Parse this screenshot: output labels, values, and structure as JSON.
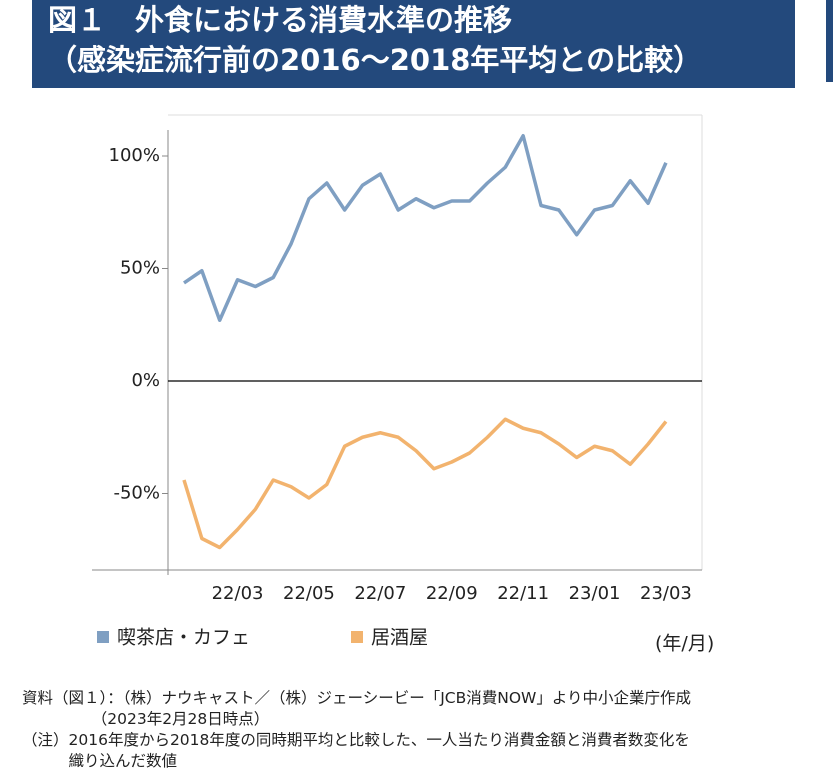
{
  "chart_data": {
    "type": "line",
    "title": [
      "図１　外食における消費水準の推移",
      "（感染症流行前の2016～2018年平均との比較）"
    ],
    "x_label": "(年/月)",
    "categories": [
      null,
      null,
      null,
      "22/03",
      null,
      null,
      null,
      "22/05",
      null,
      null,
      null,
      "22/07",
      null,
      null,
      null,
      "22/09",
      null,
      null,
      null,
      "22/11",
      null,
      null,
      null,
      "23/01",
      null,
      null,
      null,
      "23/03"
    ],
    "series": [
      {
        "name": "喫茶店・カフェ",
        "color": "#7f9fc2",
        "values": [
          43.6,
          49,
          27,
          45,
          42,
          46,
          61,
          81,
          88,
          76,
          87,
          92,
          76,
          81,
          77,
          80,
          80,
          88,
          95,
          109,
          78,
          76,
          65,
          76,
          78,
          89,
          79,
          97
        ]
      },
      {
        "name": "居酒屋",
        "color": "#f2b36e",
        "values": [
          -44,
          -70,
          -74,
          -66,
          -57,
          -44,
          -47,
          -52,
          -46,
          -29,
          -25,
          -23,
          -25,
          -31,
          -39,
          -36,
          -32,
          -25,
          -17,
          -21,
          -23,
          -28,
          -34,
          -29,
          -31,
          -37,
          -28,
          -18
        ]
      }
    ],
    "ylim": [
      -84,
      118
    ],
    "yticks": [
      {
        "value": -50,
        "label": "-50%"
      },
      {
        "value": 0,
        "label": "0%"
      },
      {
        "value": 50,
        "label": "50%"
      },
      {
        "value": 100,
        "label": "100%"
      }
    ],
    "notes": [
      "資料（図１）：（株）ナウキャスト／（株）ジェーシービー「JCB消費NOW」より中小企業庁作成",
      "　　　　　（2023年2月28日時点）",
      "（注）2016年度から2018年度の同時期平均と比較した、一人当たり消費金額と消費者数変化を",
      "　　　織り込んだ数値"
    ]
  }
}
